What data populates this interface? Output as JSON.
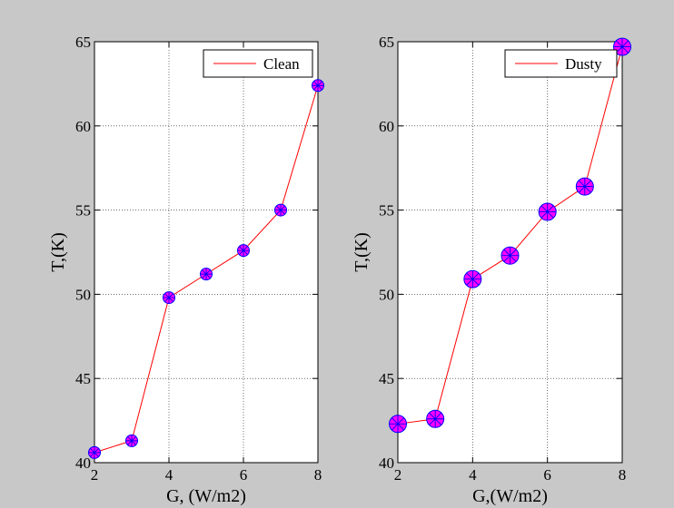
{
  "colors": {
    "figure_background": "#c8c8c8",
    "axes_background": "#ffffff",
    "line": "#ff0000",
    "marker_fill": "#ff00ff",
    "marker_edge": "#0000ff"
  },
  "chart_data": [
    {
      "type": "line",
      "title": "",
      "xlabel": "G, (W/m2)",
      "ylabel": "T,(K)",
      "xlim": [
        2,
        8
      ],
      "ylim": [
        40,
        65
      ],
      "xticks": [
        2,
        4,
        6,
        8
      ],
      "yticks": [
        40,
        45,
        50,
        55,
        60,
        65
      ],
      "xtick_labels": [
        "2",
        "4",
        "6",
        "8"
      ],
      "ytick_labels": [
        "40",
        "45",
        "50",
        "55",
        "60",
        "65"
      ],
      "grid": true,
      "legend_position": "top-right",
      "marker_size": "small",
      "series": [
        {
          "name": "Clean",
          "x": [
            2,
            3,
            4,
            5,
            6,
            7,
            8
          ],
          "y": [
            40.6,
            41.3,
            49.8,
            51.2,
            52.6,
            55.0,
            62.4
          ]
        }
      ]
    },
    {
      "type": "line",
      "title": "",
      "xlabel": "G,(W/m2)",
      "ylabel": "T,(K)",
      "xlim": [
        2,
        8
      ],
      "ylim": [
        40,
        65
      ],
      "xticks": [
        2,
        4,
        6,
        8
      ],
      "yticks": [
        40,
        45,
        50,
        55,
        60,
        65
      ],
      "xtick_labels": [
        "2",
        "4",
        "6",
        "8"
      ],
      "ytick_labels": [
        "40",
        "45",
        "50",
        "55",
        "60",
        "65"
      ],
      "grid": true,
      "legend_position": "top-right",
      "marker_size": "large",
      "series": [
        {
          "name": "Dusty",
          "x": [
            2,
            3,
            4,
            5,
            6,
            7,
            8
          ],
          "y": [
            42.3,
            42.6,
            50.9,
            52.3,
            54.9,
            56.4,
            64.7
          ]
        }
      ]
    }
  ]
}
